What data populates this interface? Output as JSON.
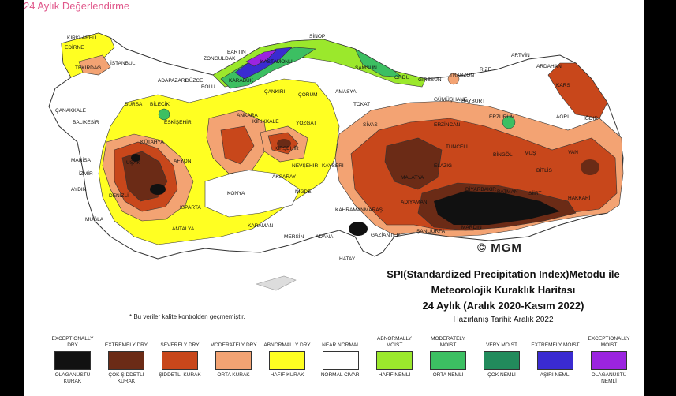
{
  "caption": "24 Aylık Değerlendirme",
  "colors": {
    "exceptionally_dry": "#111111",
    "extremely_dry": "#6b2b16",
    "severely_dry": "#c8471b",
    "moderately_dry": "#f3a373",
    "abnormally_dry": "#ffff22",
    "near_normal": "#ffffff",
    "abnormally_moist": "#9be82c",
    "moderately_moist": "#3cbf62",
    "very_moist": "#228b5c",
    "extremely_moist": "#3a2bd1",
    "exceptionally_moist": "#9b24e0"
  },
  "map": {
    "logo": "© MGM",
    "footnote": "* Bu veriler kalite kontrolden geçmemiştir.",
    "cities": [
      {
        "id": "kirklareli",
        "name": "KIRKLARELİ"
      },
      {
        "id": "edirne",
        "name": "EDİRNE"
      },
      {
        "id": "tekirdag",
        "name": "TEKİRDAĞ"
      },
      {
        "id": "istanbul",
        "name": "İSTANBUL"
      },
      {
        "id": "sinop",
        "name": "SİNOP"
      },
      {
        "id": "bartin",
        "name": "BARTIN"
      },
      {
        "id": "zonguldak",
        "name": "ZONGULDAK"
      },
      {
        "id": "kastamonu",
        "name": "KASTAMONU"
      },
      {
        "id": "samsun",
        "name": "SAMSUN"
      },
      {
        "id": "ordu",
        "name": "ORDU"
      },
      {
        "id": "giresun",
        "name": "GİRESUN"
      },
      {
        "id": "trabzon",
        "name": "TRABZON"
      },
      {
        "id": "rize",
        "name": "RİZE"
      },
      {
        "id": "artvin",
        "name": "ARTVİN"
      },
      {
        "id": "ardahan",
        "name": "ARDAHAN"
      },
      {
        "id": "kars",
        "name": "KARS"
      },
      {
        "id": "adapazari",
        "name": "ADAPAZARI"
      },
      {
        "id": "duzce",
        "name": "DÜZCE"
      },
      {
        "id": "bolu",
        "name": "BOLU"
      },
      {
        "id": "karabuk",
        "name": "KARABÜK"
      },
      {
        "id": "cankiri",
        "name": "ÇANKIRI"
      },
      {
        "id": "corum",
        "name": "ÇORUM"
      },
      {
        "id": "amasya",
        "name": "AMASYA"
      },
      {
        "id": "tokat",
        "name": "TOKAT"
      },
      {
        "id": "gumushane",
        "name": "GÜMÜŞHANE"
      },
      {
        "id": "bayburt",
        "name": "BAYBURT"
      },
      {
        "id": "erzurum",
        "name": "ERZURUM"
      },
      {
        "id": "agri",
        "name": "AĞRI"
      },
      {
        "id": "igdir",
        "name": "IĞDIR"
      },
      {
        "id": "canakkale",
        "name": "ÇANAKKALE"
      },
      {
        "id": "bursa",
        "name": "BURSA"
      },
      {
        "id": "bilecik",
        "name": "BİLECİK"
      },
      {
        "id": "eskisehir",
        "name": "ESKİŞEHİR"
      },
      {
        "id": "ankara",
        "name": "ANKARA"
      },
      {
        "id": "kirikkale",
        "name": "KIRIKKALE"
      },
      {
        "id": "yozgat",
        "name": "YOZGAT"
      },
      {
        "id": "sivas",
        "name": "SİVAS"
      },
      {
        "id": "erzincan",
        "name": "ERZİNCAN"
      },
      {
        "id": "balikesir",
        "name": "BALIKESİR"
      },
      {
        "id": "kutahya",
        "name": "KÜTAHYA"
      },
      {
        "id": "kirsehir",
        "name": "KIRŞEHİR"
      },
      {
        "id": "tunceli",
        "name": "TUNCELİ"
      },
      {
        "id": "bingol",
        "name": "BİNGÖL"
      },
      {
        "id": "mus",
        "name": "MUŞ"
      },
      {
        "id": "van",
        "name": "VAN"
      },
      {
        "id": "afyon",
        "name": "AFYON"
      },
      {
        "id": "aksaray",
        "name": "AKSARAY"
      },
      {
        "id": "nevsehir",
        "name": "NEVŞEHİR"
      },
      {
        "id": "kayseri",
        "name": "KAYSERİ"
      },
      {
        "id": "malatya",
        "name": "MALATYA"
      },
      {
        "id": "elazig",
        "name": "ELAZIĞ"
      },
      {
        "id": "bitlis",
        "name": "BİTLİS"
      },
      {
        "id": "manisa",
        "name": "MANİSA"
      },
      {
        "id": "usak",
        "name": "UŞAK"
      },
      {
        "id": "izmir",
        "name": "İZMİR"
      },
      {
        "id": "konya",
        "name": "KONYA"
      },
      {
        "id": "nigde",
        "name": "NİĞDE"
      },
      {
        "id": "siirt",
        "name": "SİİRT"
      },
      {
        "id": "hakkari",
        "name": "HAKKARİ"
      },
      {
        "id": "aydin",
        "name": "AYDIN"
      },
      {
        "id": "denizli",
        "name": "DENİZLİ"
      },
      {
        "id": "isparta",
        "name": "ISPARTA"
      },
      {
        "id": "kahramanmaras",
        "name": "KAHRAMANMARAŞ"
      },
      {
        "id": "adiyaman",
        "name": "ADIYAMAN"
      },
      {
        "id": "diyarbakir",
        "name": "DİYARBAKIR"
      },
      {
        "id": "batman",
        "name": "BATMAN"
      },
      {
        "id": "mugla",
        "name": "MUĞLA"
      },
      {
        "id": "antalya",
        "name": "ANTALYA"
      },
      {
        "id": "karaman",
        "name": "KARAMAN"
      },
      {
        "id": "mersin",
        "name": "MERSİN"
      },
      {
        "id": "adana",
        "name": "ADANA"
      },
      {
        "id": "gaziantep",
        "name": "GAZİANTEP"
      },
      {
        "id": "sanliurfa",
        "name": "ŞANLIURFA"
      },
      {
        "id": "mardin",
        "name": "MARDİN"
      },
      {
        "id": "hatay",
        "name": "HATAY"
      }
    ]
  },
  "title": {
    "line1": "SPI(Standardized Precipitation Index)Metodu ile",
    "line2": "Meteorolojik Kuraklık Haritası",
    "line3": "24 Aylık (Aralık 2020-Kasım 2022)",
    "prepared": "Hazırlanış Tarihi: Aralık 2022"
  },
  "legend": [
    {
      "en": "EXCEPTIONALLY DRY",
      "tr": "OLAĞANÜSTÜ KURAK",
      "color": "#111111"
    },
    {
      "en": "EXTREMELY DRY",
      "tr": "ÇOK ŞİDDETLİ KURAK",
      "color": "#6b2b16"
    },
    {
      "en": "SEVERELY DRY",
      "tr": "ŞİDDETLİ KURAK",
      "color": "#c8471b"
    },
    {
      "en": "MODERATELY DRY",
      "tr": "ORTA KURAK",
      "color": "#f3a373"
    },
    {
      "en": "ABNORMALLY DRY",
      "tr": "HAFİF KURAK",
      "color": "#ffff22"
    },
    {
      "en": "NEAR NORMAL",
      "tr": "NORMAL CİVARI",
      "color": "#ffffff"
    },
    {
      "en": "ABNORMALLY MOIST",
      "tr": "HAFİF NEMLİ",
      "color": "#9be82c"
    },
    {
      "en": "MODERATELY MOIST",
      "tr": "ORTA NEMLİ",
      "color": "#3cbf62"
    },
    {
      "en": "VERY MOIST",
      "tr": "ÇOK NEMLİ",
      "color": "#228b5c"
    },
    {
      "en": "EXTREMELY MOIST",
      "tr": "AŞIRI NEMLİ",
      "color": "#3a2bd1"
    },
    {
      "en": "EXCEPTIONALLY MOIST",
      "tr": "OLAĞANÜSTÜ NEMLİ",
      "color": "#9b24e0"
    }
  ]
}
